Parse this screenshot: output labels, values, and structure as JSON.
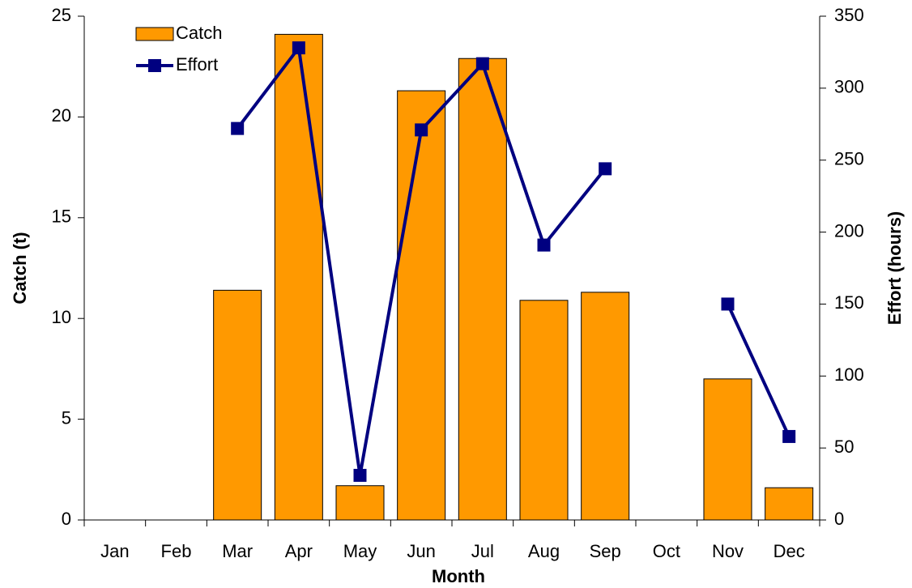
{
  "chart_data": {
    "type": "bar-line",
    "x_label": "Month",
    "y_label": "Catch (t)",
    "y2_label": "Effort (hours)",
    "categories": [
      "Jan",
      "Feb",
      "Mar",
      "Apr",
      "May",
      "Jun",
      "Jul",
      "Aug",
      "Sep",
      "Oct",
      "Nov",
      "Dec"
    ],
    "series": [
      {
        "name": "Catch",
        "type": "bar",
        "color": "#ff9900",
        "values": [
          null,
          null,
          11.4,
          24.1,
          1.7,
          21.3,
          22.9,
          10.9,
          11.3,
          null,
          7.0,
          1.6
        ]
      },
      {
        "name": "Effort",
        "type": "line",
        "axis": "y2",
        "color": "#000080",
        "values": [
          null,
          null,
          272,
          328,
          31,
          271,
          317,
          191,
          244,
          null,
          150,
          58
        ]
      }
    ],
    "ylim": [
      0,
      25
    ],
    "yticks": [
      0,
      5,
      10,
      15,
      20,
      25
    ],
    "y2lim": [
      0,
      350
    ],
    "y2ticks": [
      0,
      50,
      100,
      150,
      200,
      250,
      300,
      350
    ],
    "legend": "upper left",
    "grid": false
  }
}
